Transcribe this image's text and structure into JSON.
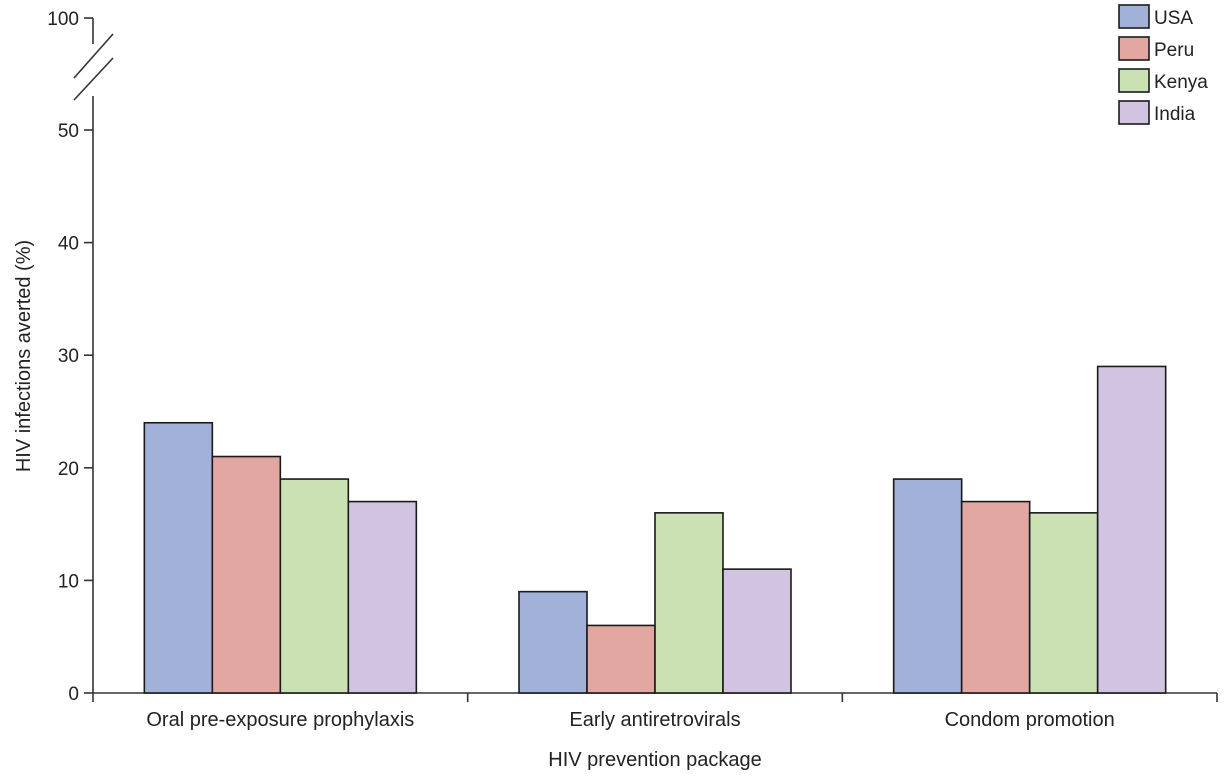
{
  "chart_data": {
    "type": "bar",
    "title": "",
    "xlabel": "HIV prevention package",
    "ylabel": "HIV infections averted (%)",
    "ylim": [
      0,
      50
    ],
    "y_break": true,
    "y_extra_tick": 100,
    "yticks": [
      0,
      10,
      20,
      30,
      40,
      50,
      100
    ],
    "categories": [
      "Oral pre-exposure prophylaxis",
      "Early antiretrovirals",
      "Condom promotion"
    ],
    "series": [
      {
        "name": "USA",
        "color": "#a1b1d8",
        "values": [
          24,
          9,
          19
        ]
      },
      {
        "name": "Peru",
        "color": "#e3a7a1",
        "values": [
          21,
          6,
          17
        ]
      },
      {
        "name": "Kenya",
        "color": "#c9e1b3",
        "values": [
          19,
          16,
          16
        ]
      },
      {
        "name": "India",
        "color": "#d2c4e1",
        "values": [
          17,
          11,
          29
        ]
      }
    ],
    "legend_position": "top-right",
    "grid": false
  }
}
